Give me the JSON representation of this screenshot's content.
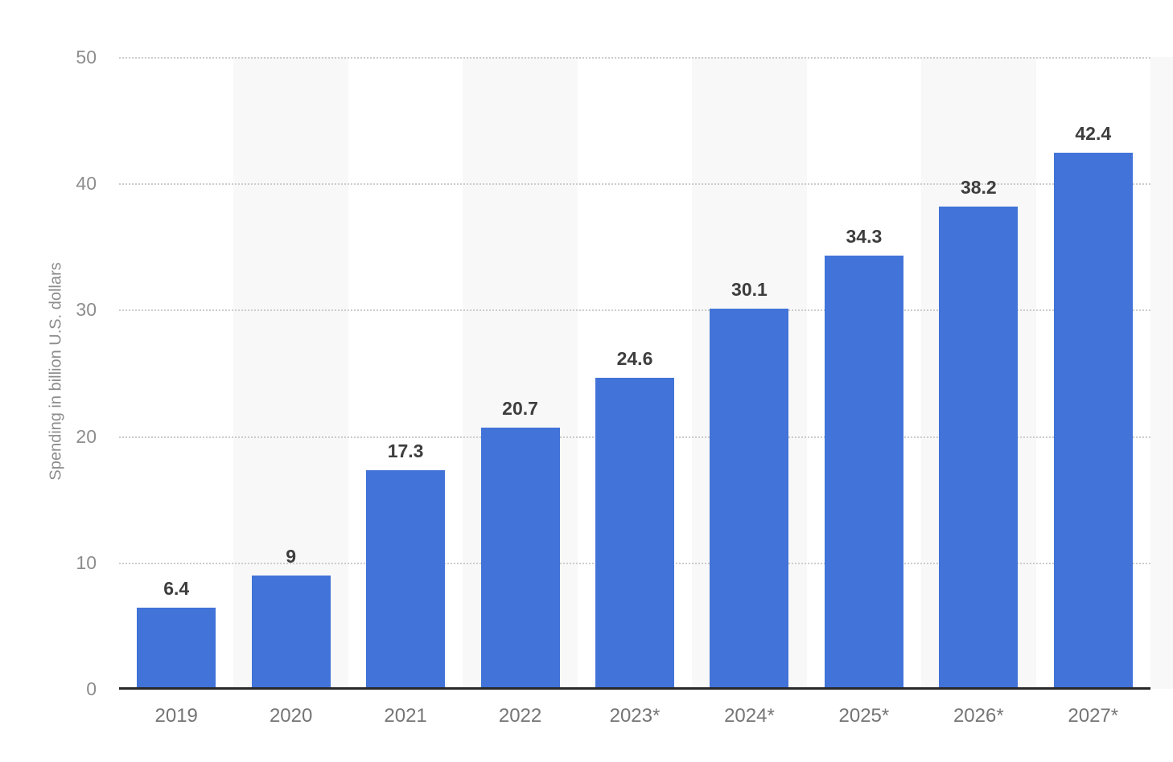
{
  "chart_data": {
    "type": "bar",
    "categories": [
      "2019",
      "2020",
      "2021",
      "2022",
      "2023*",
      "2024*",
      "2025*",
      "2026*",
      "2027*"
    ],
    "values": [
      6.4,
      9,
      17.3,
      20.7,
      24.6,
      30.1,
      34.3,
      38.2,
      42.4
    ],
    "value_labels": [
      "6.4",
      "9",
      "17.3",
      "20.7",
      "24.6",
      "30.1",
      "34.3",
      "38.2",
      "42.4"
    ],
    "title": "",
    "xlabel": "",
    "ylabel": "Spending in billion U.S. dollars",
    "ylim": [
      0,
      50
    ],
    "yticks": [
      0,
      10,
      20,
      30,
      40,
      50
    ],
    "grid": "horizontal-dotted",
    "legend": "none",
    "banded_categories": [
      "2020",
      "2022",
      "2024*",
      "2026*"
    ],
    "colors": {
      "bar": "#4173d8",
      "band": "#f8f8f8",
      "gridline": "#cccccc",
      "axis_line": "#282828",
      "value_label": "#3d3d3d",
      "x_tick_label": "#757575",
      "y_tick_label": "#8d8d8d",
      "y_axis_title": "#8d8d8d",
      "background": "#ffffff"
    }
  }
}
